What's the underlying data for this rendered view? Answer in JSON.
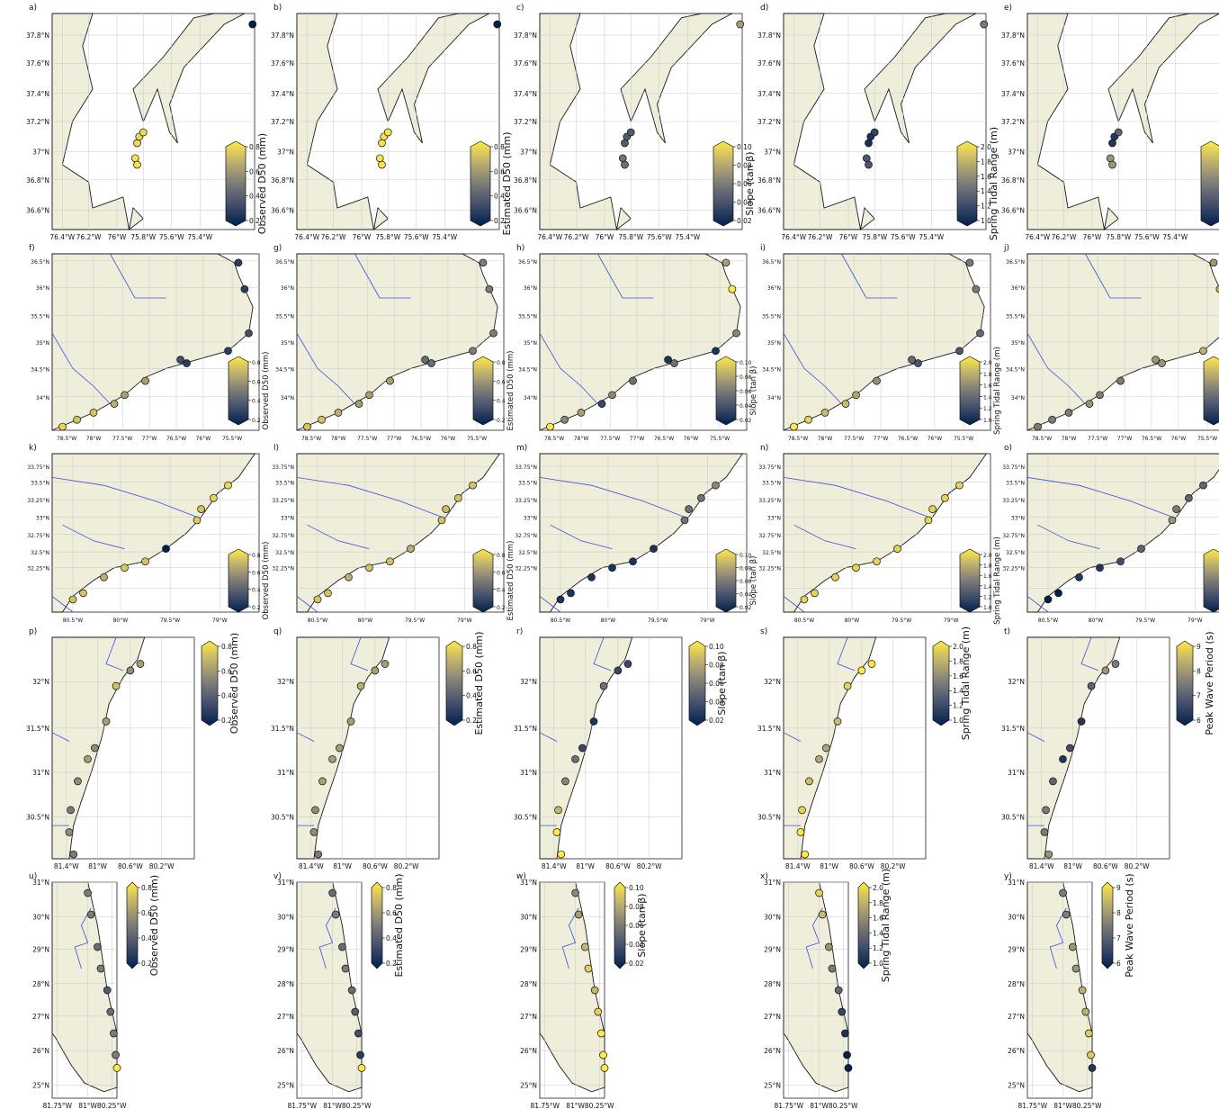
{
  "figure": {
    "type": "map-grid",
    "colormap": "cividis",
    "land_color": "#efeedb",
    "river_color": "#3a4fd9",
    "coast_color": "#1a1a1a"
  },
  "variables": [
    {
      "key": "obs",
      "label": "Observed D50 (mm)",
      "ticks": [
        "0.2",
        "0.4",
        "0.6",
        "0.8"
      ]
    },
    {
      "key": "est",
      "label": "Estimated D50 (mm)",
      "ticks": [
        "0.2",
        "0.4",
        "0.6",
        "0.8"
      ]
    },
    {
      "key": "slope",
      "label": "Slope (tan β)",
      "ticks": [
        "0.02",
        "0.04",
        "0.06",
        "0.08",
        "0.10"
      ]
    },
    {
      "key": "tide",
      "label": "Spring Tidal Range (m)",
      "ticks": [
        "1.0",
        "1.2",
        "1.4",
        "1.6",
        "1.8",
        "2.0"
      ]
    },
    {
      "key": "wave",
      "label": "Peak Wave Period (s)",
      "ticks": [
        "6",
        "7",
        "8",
        "9"
      ]
    }
  ],
  "rows": [
    {
      "id": "r1",
      "labels": [
        "a)",
        "b)",
        "c)",
        "d)",
        "e)"
      ],
      "xticks": [
        "76.4°W",
        "76.2°W",
        "76°W",
        "75.8°W",
        "75.6°W",
        "75.4°W"
      ],
      "yticks": [
        "37.8°N",
        "37.6°N",
        "37.4°N",
        "37.2°N",
        "37°N",
        "36.8°N",
        "36.6°N"
      ]
    },
    {
      "id": "r2",
      "labels": [
        "f)",
        "g)",
        "h)",
        "i)",
        "j)"
      ],
      "xticks": [
        "78.5°W",
        "78°W",
        "77.5°W",
        "77°W",
        "76.5°W",
        "76°W",
        "75.5°W"
      ],
      "yticks": [
        "36.5°N",
        "36°N",
        "35.5°N",
        "35°N",
        "34.5°N",
        "34°N"
      ]
    },
    {
      "id": "r3",
      "labels": [
        "k)",
        "l)",
        "m)",
        "n)",
        "o)"
      ],
      "xticks": [
        "80.5°W",
        "80°W",
        "79.5°W",
        "79°W"
      ],
      "yticks": [
        "33.75°N",
        "33.5°N",
        "33.25°N",
        "33°N",
        "32.75°N",
        "32.5°N",
        "32.25°N"
      ]
    },
    {
      "id": "r4",
      "labels": [
        "p)",
        "q)",
        "r)",
        "s)",
        "t)"
      ],
      "xticks": [
        "81.4°W",
        "81°W",
        "80.6°W",
        "80.2°W"
      ],
      "yticks": [
        "32°N",
        "31.5°N",
        "31°N",
        "30.5°N"
      ]
    },
    {
      "id": "r5",
      "labels": [
        "u)",
        "v)",
        "w)",
        "x)",
        "y)"
      ],
      "xticks": [
        "81.75°W",
        "81°W",
        "80.25°W"
      ],
      "yticks": [
        "31°N",
        "30°N",
        "29°N",
        "28°N",
        "27°N",
        "26°N",
        "25°N"
      ]
    }
  ],
  "chart_data": [
    {
      "type": "scatter-map",
      "region": "Virginia coast",
      "series": [
        {
          "variable": "obs",
          "values": [
            0.18,
            0.75,
            0.75,
            0.76,
            0.78,
            0.78
          ]
        },
        {
          "variable": "est",
          "values": [
            0.18,
            0.78,
            0.78,
            0.78,
            0.78,
            0.78
          ]
        },
        {
          "variable": "slope",
          "values": [
            0.07,
            0.04,
            0.04,
            0.04,
            0.05,
            0.05
          ]
        },
        {
          "variable": "tide",
          "values": [
            1.5,
            1.1,
            1.1,
            1.2,
            1.3,
            1.3
          ]
        },
        {
          "variable": "wave",
          "values": [
            8.5,
            5.5,
            5.5,
            6.5,
            7.5,
            7.5
          ]
        }
      ]
    },
    {
      "type": "scatter-map",
      "region": "North Carolina coast",
      "series": [
        {
          "variable": "obs",
          "values": [
            0.3,
            0.3,
            0.35,
            0.3,
            0.3,
            0.35,
            0.6,
            0.6,
            0.65,
            0.7,
            0.7,
            0.75
          ]
        },
        {
          "variable": "est",
          "values": [
            0.5,
            0.5,
            0.5,
            0.5,
            0.45,
            0.45,
            0.6,
            0.6,
            0.6,
            0.65,
            0.7,
            0.7
          ]
        },
        {
          "variable": "slope",
          "values": [
            0.07,
            0.1,
            0.06,
            0.02,
            0.05,
            0.02,
            0.05,
            0.06,
            0.03,
            0.07,
            0.06,
            0.1
          ]
        },
        {
          "variable": "tide",
          "values": [
            1.5,
            1.5,
            1.4,
            1.3,
            1.3,
            1.4,
            1.6,
            1.7,
            1.8,
            1.8,
            1.9,
            2.0
          ]
        },
        {
          "variable": "wave",
          "values": [
            7.5,
            8.0,
            8.5,
            8.0,
            7.5,
            7.5,
            7.0,
            7.0,
            7.5,
            7.0,
            7.0,
            7.0
          ]
        }
      ]
    },
    {
      "type": "scatter-map",
      "region": "South Carolina coast",
      "series": [
        {
          "variable": "obs",
          "values": [
            0.75,
            0.75,
            0.7,
            0.72,
            0.2,
            0.7,
            0.72,
            0.65,
            0.7,
            0.7
          ]
        },
        {
          "variable": "est",
          "values": [
            0.7,
            0.7,
            0.68,
            0.7,
            0.65,
            0.7,
            0.7,
            0.65,
            0.7,
            0.7
          ]
        },
        {
          "variable": "slope",
          "values": [
            0.06,
            0.05,
            0.05,
            0.05,
            0.02,
            0.02,
            0.02,
            0.02,
            0.02,
            0.02
          ]
        },
        {
          "variable": "tide",
          "values": [
            1.9,
            1.9,
            1.9,
            1.9,
            1.9,
            1.9,
            1.9,
            1.9,
            1.9,
            1.9
          ]
        },
        {
          "variable": "wave",
          "values": [
            6.5,
            6.5,
            7.0,
            7.5,
            6.5,
            6.0,
            5.5,
            5.5,
            5.0,
            5.0
          ]
        }
      ]
    },
    {
      "type": "scatter-map",
      "region": "Georgia coast",
      "series": [
        {
          "variable": "obs",
          "values": [
            0.6,
            0.55,
            0.7,
            0.6,
            0.55,
            0.6,
            0.55,
            0.5,
            0.55,
            0.5
          ]
        },
        {
          "variable": "est",
          "values": [
            0.6,
            0.6,
            0.65,
            0.6,
            0.6,
            0.6,
            0.6,
            0.55,
            0.55,
            0.5
          ]
        },
        {
          "variable": "slope",
          "values": [
            0.03,
            0.03,
            0.05,
            0.02,
            0.03,
            0.05,
            0.06,
            0.08,
            0.1,
            0.1
          ]
        },
        {
          "variable": "tide",
          "values": [
            2.0,
            2.0,
            1.9,
            1.8,
            1.7,
            1.7,
            1.8,
            1.9,
            2.0,
            2.0
          ]
        },
        {
          "variable": "wave",
          "values": [
            7.0,
            7.5,
            6.5,
            5.5,
            6.0,
            5.5,
            6.5,
            7.0,
            7.0,
            7.5
          ]
        }
      ]
    },
    {
      "type": "scatter-map",
      "region": "Florida Atlantic coast",
      "series": [
        {
          "variable": "obs",
          "values": [
            0.5,
            0.5,
            0.45,
            0.5,
            0.4,
            0.45,
            0.5,
            0.5,
            0.8
          ]
        },
        {
          "variable": "est",
          "values": [
            0.45,
            0.5,
            0.45,
            0.5,
            0.45,
            0.4,
            0.35,
            0.3,
            0.8
          ]
        },
        {
          "variable": "slope",
          "values": [
            0.06,
            0.07,
            0.08,
            0.09,
            0.08,
            0.09,
            0.1,
            0.1,
            0.1
          ]
        },
        {
          "variable": "tide",
          "values": [
            1.9,
            1.8,
            1.6,
            1.5,
            1.4,
            1.2,
            1.1,
            1.0,
            1.0
          ]
        },
        {
          "variable": "wave",
          "values": [
            7.0,
            7.0,
            7.5,
            7.5,
            8.0,
            8.0,
            8.5,
            8.5,
            5.5
          ]
        }
      ]
    }
  ]
}
